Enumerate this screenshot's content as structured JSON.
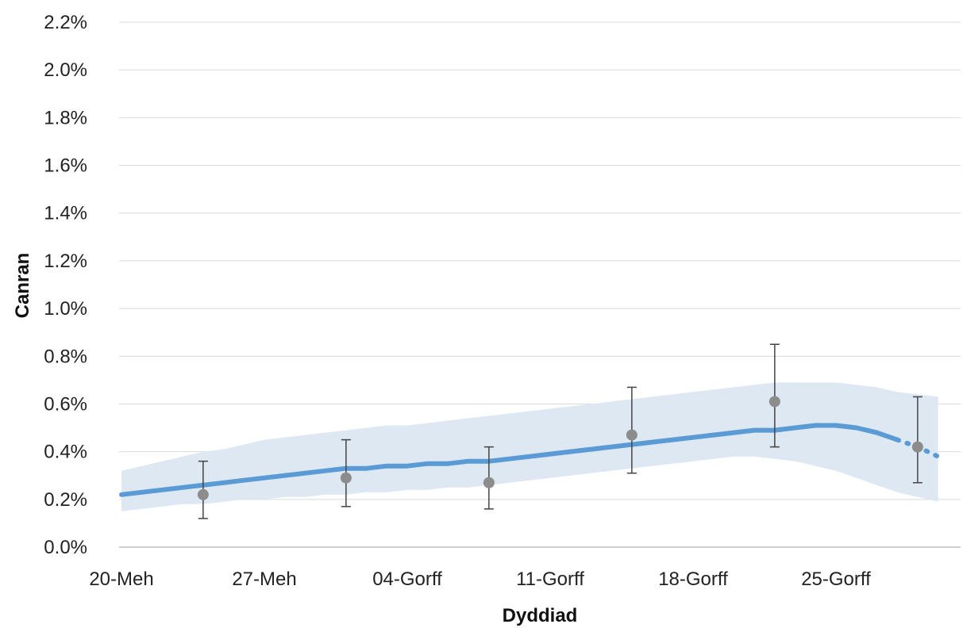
{
  "chart_data": {
    "type": "line",
    "xlabel": "Dyddiad",
    "ylabel": "Canran",
    "x_tick_labels": [
      "20-Meh",
      "27-Meh",
      "04-Gorff",
      "11-Gorff",
      "18-Gorff",
      "25-Gorff"
    ],
    "y_tick_labels": [
      "0.0%",
      "0.2%",
      "0.4%",
      "0.6%",
      "0.8%",
      "1.0%",
      "1.2%",
      "1.4%",
      "1.6%",
      "1.8%",
      "2.0%",
      "2.2%"
    ],
    "ylim": [
      0,
      2.2
    ],
    "grid": true,
    "colors": {
      "trend": "#5b9bd5",
      "band": "#dde8f2",
      "points": "#8c8c8c",
      "grid": "#d9d9d9"
    },
    "series": [
      {
        "kind": "modelled_trend",
        "x": [
          "20-Meh",
          "21-Meh",
          "22-Meh",
          "23-Meh",
          "24-Meh",
          "25-Meh",
          "26-Meh",
          "27-Meh",
          "28-Meh",
          "29-Meh",
          "30-Meh",
          "01-Gorff",
          "02-Gorff",
          "03-Gorff",
          "04-Gorff",
          "05-Gorff",
          "06-Gorff",
          "07-Gorff",
          "08-Gorff",
          "09-Gorff",
          "10-Gorff",
          "11-Gorff",
          "12-Gorff",
          "13-Gorff",
          "14-Gorff",
          "15-Gorff",
          "16-Gorff",
          "17-Gorff",
          "18-Gorff",
          "19-Gorff",
          "20-Gorff",
          "21-Gorff",
          "22-Gorff",
          "23-Gorff",
          "24-Gorff",
          "25-Gorff",
          "26-Gorff",
          "27-Gorff",
          "28-Gorff",
          "29-Gorff",
          "30-Gorff"
        ],
        "y": [
          0.22,
          0.23,
          0.24,
          0.25,
          0.26,
          0.27,
          0.28,
          0.29,
          0.3,
          0.31,
          0.32,
          0.33,
          0.33,
          0.34,
          0.34,
          0.35,
          0.35,
          0.36,
          0.36,
          0.37,
          0.38,
          0.39,
          0.4,
          0.41,
          0.42,
          0.43,
          0.44,
          0.45,
          0.46,
          0.47,
          0.48,
          0.49,
          0.49,
          0.5,
          0.51,
          0.51,
          0.5,
          0.48,
          0.45,
          0.42,
          0.38
        ],
        "lower": [
          0.15,
          0.16,
          0.17,
          0.18,
          0.18,
          0.19,
          0.2,
          0.2,
          0.21,
          0.21,
          0.22,
          0.22,
          0.23,
          0.23,
          0.24,
          0.24,
          0.25,
          0.25,
          0.26,
          0.27,
          0.28,
          0.29,
          0.3,
          0.31,
          0.32,
          0.33,
          0.34,
          0.35,
          0.36,
          0.37,
          0.38,
          0.38,
          0.37,
          0.36,
          0.34,
          0.32,
          0.29,
          0.26,
          0.23,
          0.21,
          0.19
        ],
        "upper": [
          0.32,
          0.34,
          0.36,
          0.38,
          0.4,
          0.41,
          0.43,
          0.45,
          0.46,
          0.47,
          0.48,
          0.49,
          0.5,
          0.51,
          0.51,
          0.52,
          0.53,
          0.54,
          0.55,
          0.56,
          0.57,
          0.58,
          0.59,
          0.6,
          0.61,
          0.62,
          0.63,
          0.64,
          0.65,
          0.66,
          0.67,
          0.68,
          0.69,
          0.69,
          0.69,
          0.69,
          0.68,
          0.67,
          0.65,
          0.64,
          0.63
        ],
        "projected_from": "28-Gorff"
      },
      {
        "kind": "official_estimates",
        "x": [
          "24-Meh",
          "01-Gorff",
          "08-Gorff",
          "15-Gorff",
          "22-Gorff",
          "29-Gorff"
        ],
        "y": [
          0.22,
          0.29,
          0.27,
          0.47,
          0.61,
          0.42
        ],
        "lower": [
          0.12,
          0.17,
          0.16,
          0.31,
          0.42,
          0.27
        ],
        "upper": [
          0.36,
          0.45,
          0.42,
          0.67,
          0.85,
          0.63
        ]
      }
    ]
  }
}
